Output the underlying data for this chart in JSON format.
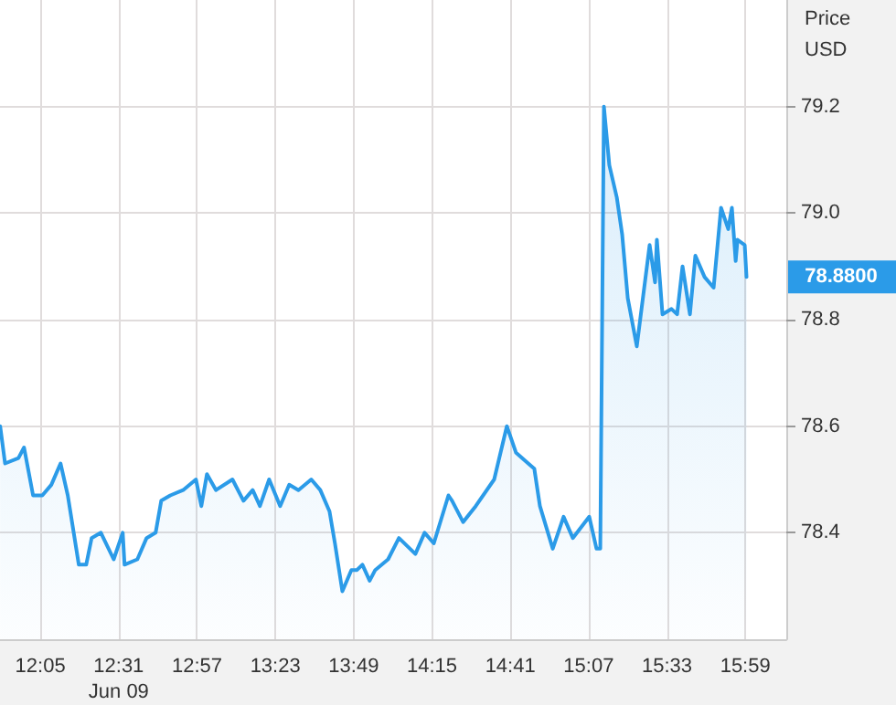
{
  "chart_data": {
    "type": "area",
    "ylabel": "Price USD",
    "x": [
      11.861,
      11.888,
      11.962,
      11.993,
      12.043,
      12.094,
      12.144,
      12.195,
      12.235,
      12.296,
      12.337,
      12.367,
      12.418,
      12.489,
      12.539,
      12.549,
      12.62,
      12.671,
      12.721,
      12.752,
      12.802,
      12.873,
      12.944,
      12.974,
      13.005,
      13.055,
      13.146,
      13.207,
      13.258,
      13.298,
      13.349,
      13.41,
      13.46,
      13.511,
      13.582,
      13.632,
      13.683,
      13.713,
      13.754,
      13.804,
      13.835,
      13.865,
      13.905,
      13.936,
      14.007,
      14.067,
      14.158,
      14.209,
      14.26,
      14.341,
      14.361,
      14.422,
      14.492,
      14.594,
      14.664,
      14.715,
      14.816,
      14.847,
      14.918,
      14.978,
      15.029,
      15.12,
      15.16,
      15.181,
      15.201,
      15.231,
      15.272,
      15.302,
      15.333,
      15.383,
      15.454,
      15.484,
      15.494,
      15.525,
      15.575,
      15.606,
      15.636,
      15.677,
      15.707,
      15.758,
      15.808,
      15.849,
      15.889,
      15.909,
      15.93,
      15.94,
      15.98,
      15.99
    ],
    "series": [
      {
        "color": "#2b9be8",
        "values": [
          78.6,
          78.53,
          78.54,
          78.56,
          78.47,
          78.47,
          78.49,
          78.53,
          78.47,
          78.34,
          78.34,
          78.39,
          78.4,
          78.35,
          78.4,
          78.34,
          78.35,
          78.39,
          78.4,
          78.46,
          78.47,
          78.48,
          78.5,
          78.45,
          78.51,
          78.48,
          78.5,
          78.46,
          78.48,
          78.45,
          78.5,
          78.45,
          78.49,
          78.48,
          78.5,
          78.48,
          78.44,
          78.38,
          78.29,
          78.33,
          78.33,
          78.34,
          78.31,
          78.33,
          78.35,
          78.39,
          78.36,
          78.4,
          78.38,
          78.47,
          78.46,
          78.42,
          78.45,
          78.5,
          78.6,
          78.55,
          78.52,
          78.45,
          78.37,
          78.43,
          78.39,
          78.43,
          78.37,
          78.37,
          79.2,
          79.09,
          79.03,
          78.96,
          78.84,
          78.75,
          78.94,
          78.87,
          78.95,
          78.81,
          78.82,
          78.81,
          78.9,
          78.81,
          78.92,
          78.88,
          78.86,
          79.01,
          78.97,
          79.01,
          78.91,
          78.95,
          78.94,
          78.88
        ]
      }
    ],
    "xlim": [
      11.86,
      16.21
    ],
    "xticks": [
      {
        "value": 12.0833,
        "label": "12:05"
      },
      {
        "value": 12.5167,
        "label": "12:31\nJun 09"
      },
      {
        "value": 12.95,
        "label": "12:57"
      },
      {
        "value": 13.3833,
        "label": "13:23"
      },
      {
        "value": 13.8167,
        "label": "13:49"
      },
      {
        "value": 14.25,
        "label": "14:15"
      },
      {
        "value": 14.6833,
        "label": "14:41"
      },
      {
        "value": 15.1167,
        "label": "15:07"
      },
      {
        "value": 15.55,
        "label": "15:33"
      },
      {
        "value": 15.9833,
        "label": "15:59"
      }
    ],
    "ylim": [
      78.2,
      79.4
    ],
    "yticks": [
      78.4,
      78.6,
      78.8,
      {
        "value": 79,
        "label": "79.0"
      },
      79.2
    ],
    "grid": true,
    "marker": "none",
    "line_style": "solid",
    "annotations": [
      "78.8800"
    ]
  }
}
